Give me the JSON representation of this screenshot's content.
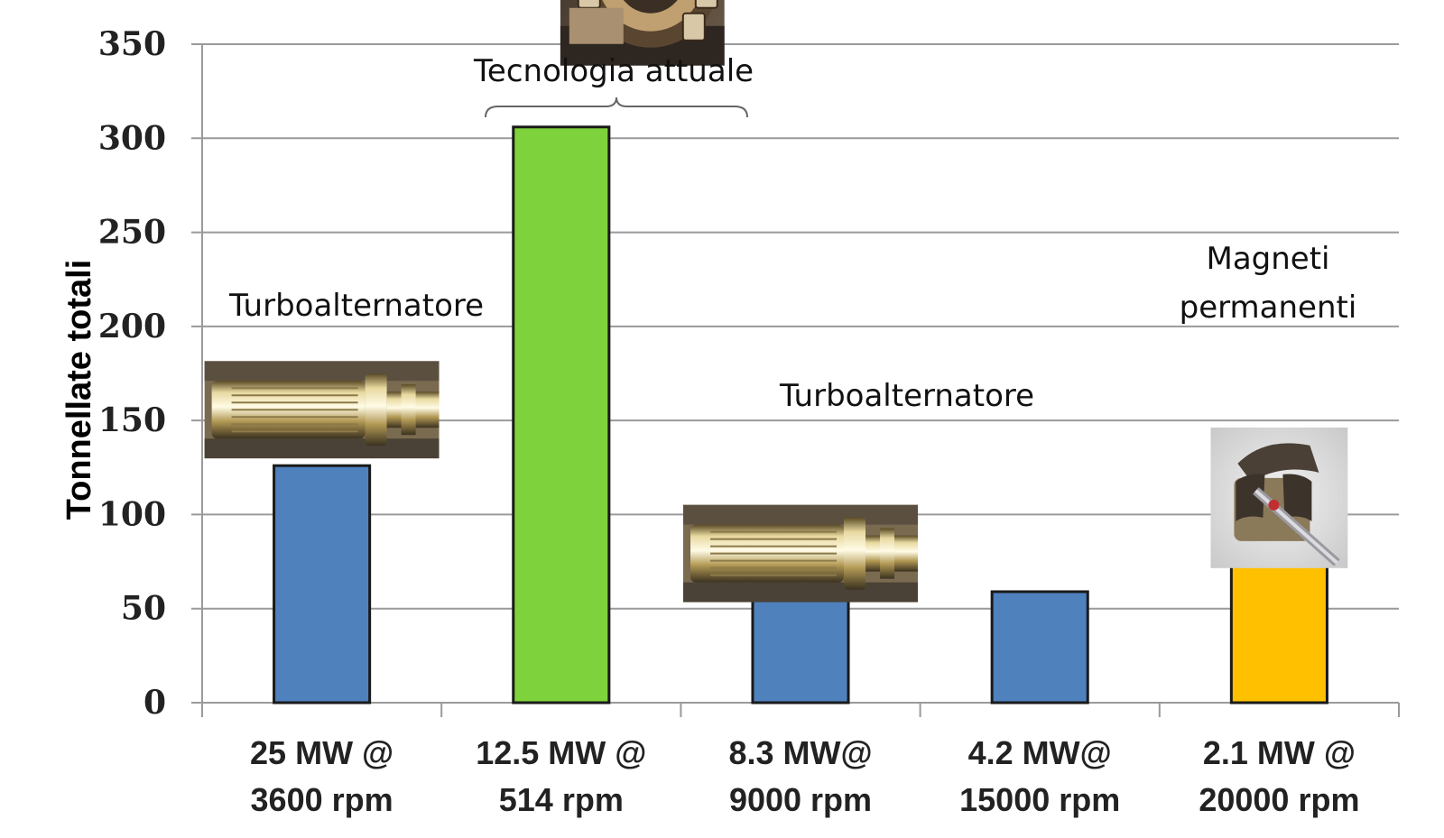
{
  "chart_data": {
    "type": "bar",
    "ylabel": "Tonnellate totali",
    "ylim": [
      0,
      350
    ],
    "yticks": [
      0,
      50,
      100,
      150,
      200,
      250,
      300,
      350
    ],
    "grid": true,
    "categories": [
      [
        "25 MW @",
        "3600 rpm"
      ],
      [
        "12.5 MW @",
        "514 rpm"
      ],
      [
        "8.3 MW@",
        "9000 rpm"
      ],
      [
        "4.2 MW@",
        "15000 rpm"
      ],
      [
        "2.1 MW @",
        "20000 rpm"
      ]
    ],
    "values": [
      126,
      306,
      63,
      59,
      83
    ],
    "colors": [
      "#4f81bd",
      "#7ed23b",
      "#4f81bd",
      "#4f81bd",
      "#ffc000"
    ],
    "annotations": [
      {
        "lines": [
          "Turboalternatore"
        ],
        "category": 0
      },
      {
        "lines": [
          "Tecnologia attuale"
        ],
        "category": 1,
        "bracket": true
      },
      {
        "lines": [
          "Turboalternatore"
        ],
        "category": 2
      },
      {
        "lines": [
          "Magneti",
          "permanenti"
        ],
        "category": 4
      }
    ],
    "images": [
      {
        "category": 0,
        "icon": "turboalternator-rotor-photo"
      },
      {
        "category": 1,
        "icon": "hydro-generator-rotor-photo"
      },
      {
        "category": 2,
        "icon": "turboalternator-rotor-photo"
      },
      {
        "category": 4,
        "icon": "permanent-magnet-rotor-photo"
      }
    ]
  }
}
